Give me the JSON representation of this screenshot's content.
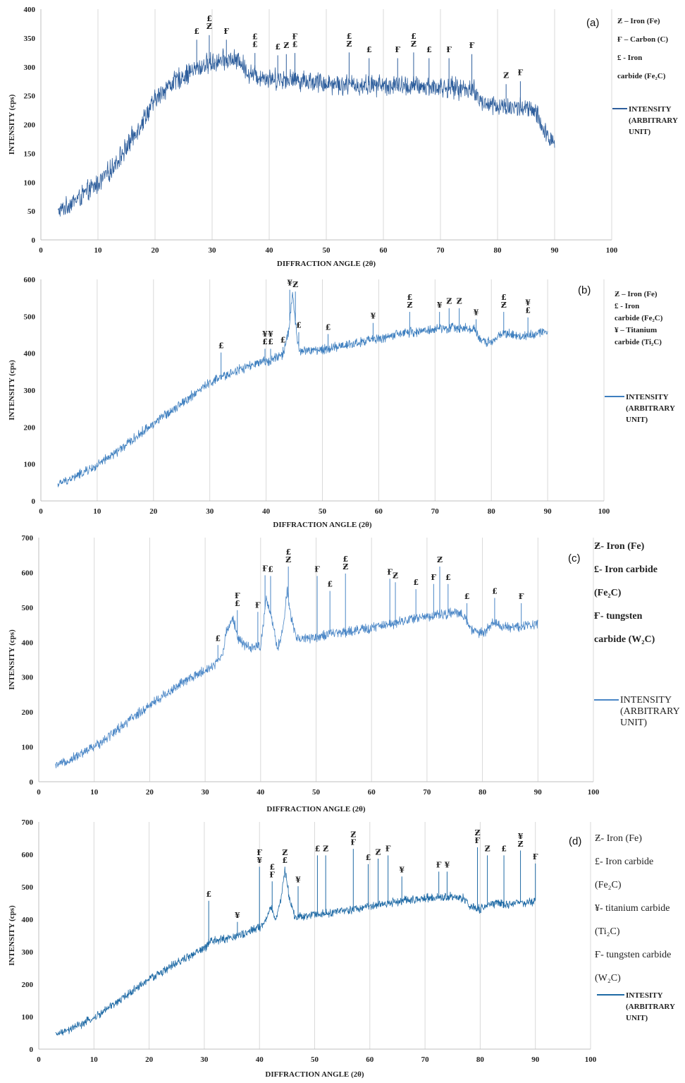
{
  "chart_data": [
    {
      "type": "line",
      "panel_label": "(a)",
      "xlabel": "DIFFRACTION ANGLE (2θ)",
      "ylabel": "INTENSITY (cps)",
      "xlim": [
        0,
        100
      ],
      "ylim": [
        0,
        400
      ],
      "xticks": [
        0,
        10,
        20,
        30,
        40,
        50,
        60,
        70,
        80,
        90,
        100
      ],
      "yticks": [
        0,
        50,
        100,
        150,
        200,
        250,
        300,
        350,
        400
      ],
      "grid": "vertical",
      "series": [
        {
          "name": "INTENSITY (ARBITRARY UNIT)",
          "color": "#2e5e9c",
          "x": [
            3,
            5,
            8,
            10,
            12,
            15,
            18,
            20,
            22,
            25,
            28,
            30,
            33,
            35,
            36,
            38,
            40,
            45,
            50,
            55,
            60,
            65,
            70,
            75,
            76,
            77,
            80,
            85,
            87,
            88,
            90
          ],
          "y": [
            48,
            62,
            82,
            98,
            118,
            160,
            210,
            242,
            265,
            285,
            300,
            308,
            312,
            310,
            292,
            285,
            280,
            278,
            272,
            268,
            268,
            266,
            264,
            262,
            260,
            238,
            232,
            228,
            218,
            185,
            172
          ],
          "noise": 22
        }
      ],
      "annotations": [
        {
          "x": 27.3,
          "y": 355,
          "labels": [
            "£"
          ]
        },
        {
          "x": 29.5,
          "y": 363,
          "labels": [
            "£",
            "Ƶ"
          ]
        },
        {
          "x": 32.5,
          "y": 355,
          "labels": [
            "Ғ"
          ]
        },
        {
          "x": 37.5,
          "y": 332,
          "labels": [
            "£",
            "£"
          ]
        },
        {
          "x": 41.5,
          "y": 328,
          "labels": [
            "£"
          ]
        },
        {
          "x": 43.0,
          "y": 330,
          "labels": [
            "Ƶ"
          ]
        },
        {
          "x": 44.5,
          "y": 332,
          "labels": [
            "Ғ",
            "£"
          ]
        },
        {
          "x": 54.0,
          "y": 333,
          "labels": [
            "£",
            "Ƶ"
          ]
        },
        {
          "x": 57.5,
          "y": 323,
          "labels": [
            "£"
          ]
        },
        {
          "x": 62.5,
          "y": 323,
          "labels": [
            "Ғ"
          ]
        },
        {
          "x": 65.3,
          "y": 333,
          "labels": [
            "£",
            "Ƶ"
          ]
        },
        {
          "x": 68.0,
          "y": 323,
          "labels": [
            "£"
          ]
        },
        {
          "x": 71.5,
          "y": 323,
          "labels": [
            "Ғ"
          ]
        },
        {
          "x": 75.5,
          "y": 330,
          "labels": [
            "Ғ"
          ]
        },
        {
          "x": 81.5,
          "y": 278,
          "labels": [
            "Ƶ"
          ]
        },
        {
          "x": 84.0,
          "y": 283,
          "labels": [
            "Ғ"
          ]
        }
      ],
      "legend_keys": [
        "Ƶ – Iron (Fe)",
        "Ғ – Carbon (C)",
        "£ - Iron",
        "carbide (Fe₂C)"
      ],
      "legend_series": [
        "INTENSITY",
        "(ARBITRARY",
        "UNIT)"
      ]
    },
    {
      "type": "line",
      "panel_label": "(b)",
      "xlabel": "DIFFRACTION ANGLE (2θ)",
      "ylabel": "INTENSITY (cps)",
      "xlim": [
        0,
        100
      ],
      "ylim": [
        0,
        600
      ],
      "xticks": [
        0,
        10,
        20,
        30,
        40,
        50,
        60,
        70,
        80,
        90,
        100
      ],
      "yticks": [
        0,
        100,
        200,
        300,
        400,
        500,
        600
      ],
      "grid": "vertical",
      "series": [
        {
          "name": "INTENSITY (ARBITRARY UNIT)",
          "color": "#3e7fbf",
          "x": [
            3,
            5,
            10,
            15,
            20,
            25,
            30,
            35,
            40,
            43,
            44,
            44.7,
            45.5,
            46,
            50,
            55,
            60,
            65,
            70,
            75,
            77,
            78,
            80,
            82,
            85,
            90
          ],
          "y": [
            45,
            58,
            95,
            150,
            210,
            265,
            320,
            355,
            378,
            395,
            460,
            560,
            440,
            405,
            410,
            425,
            440,
            455,
            465,
            470,
            465,
            435,
            430,
            455,
            445,
            460
          ],
          "noise": 16
        }
      ],
      "annotations": [
        {
          "x": 32.0,
          "y": 410,
          "labels": [
            "£"
          ]
        },
        {
          "x": 39.8,
          "y": 420,
          "labels": [
            "¥",
            "£"
          ]
        },
        {
          "x": 40.8,
          "y": 420,
          "labels": [
            "¥",
            "£"
          ]
        },
        {
          "x": 43.0,
          "y": 425,
          "labels": [
            "£"
          ]
        },
        {
          "x": 44.2,
          "y": 580,
          "labels": [
            "¥"
          ]
        },
        {
          "x": 45.2,
          "y": 575,
          "labels": [
            "Ƶ"
          ]
        },
        {
          "x": 45.8,
          "y": 465,
          "labels": [
            "£"
          ]
        },
        {
          "x": 51.0,
          "y": 460,
          "labels": [
            "£"
          ]
        },
        {
          "x": 59.0,
          "y": 490,
          "labels": [
            "¥"
          ]
        },
        {
          "x": 65.5,
          "y": 520,
          "labels": [
            "£",
            "Ƶ"
          ]
        },
        {
          "x": 70.8,
          "y": 520,
          "labels": [
            "¥"
          ]
        },
        {
          "x": 72.5,
          "y": 530,
          "labels": [
            "Ƶ"
          ]
        },
        {
          "x": 74.3,
          "y": 530,
          "labels": [
            "Ƶ"
          ]
        },
        {
          "x": 77.3,
          "y": 500,
          "labels": [
            "¥"
          ]
        },
        {
          "x": 82.2,
          "y": 520,
          "labels": [
            "£",
            "Ƶ"
          ]
        },
        {
          "x": 86.5,
          "y": 505,
          "labels": [
            "¥",
            "£"
          ]
        }
      ],
      "legend_keys": [
        "Ƶ – Iron (Fe)",
        "£ - Iron",
        "carbide (Fe₂C)",
        "¥ – Titanium",
        "carbide (Ti₂C)"
      ],
      "legend_series": [
        "INTENSITY",
        "(ARBITRARY",
        "UNIT)"
      ]
    },
    {
      "type": "line",
      "panel_label": "(c)",
      "xlabel": "DIFFRACTION ANGLE (2θ)",
      "ylabel": "INTENSITY (cps)",
      "xlim": [
        0,
        100
      ],
      "ylim": [
        0,
        700
      ],
      "xticks": [
        0,
        10,
        20,
        30,
        40,
        50,
        60,
        70,
        80,
        90,
        100
      ],
      "yticks": [
        0,
        100,
        200,
        300,
        400,
        500,
        600,
        700
      ],
      "grid": "vertical",
      "series": [
        {
          "name": "INTENSITY (ARBITRARY UNIT)",
          "color": "#4a86c6",
          "x": [
            3,
            5,
            10,
            15,
            20,
            25,
            30,
            32,
            33,
            34,
            35,
            36,
            38,
            40,
            41,
            42,
            43,
            44,
            44.8,
            45.5,
            46.5,
            50,
            55,
            60,
            65,
            70,
            75,
            77,
            78,
            80,
            82,
            85,
            90
          ],
          "y": [
            45,
            58,
            100,
            160,
            220,
            275,
            320,
            340,
            360,
            440,
            470,
            410,
            380,
            390,
            520,
            470,
            380,
            430,
            550,
            470,
            410,
            415,
            430,
            440,
            460,
            475,
            485,
            470,
            435,
            425,
            455,
            440,
            455
          ],
          "noise": 18
        }
      ],
      "annotations": [
        {
          "x": 32.3,
          "y": 400,
          "labels": [
            "£"
          ]
        },
        {
          "x": 35.8,
          "y": 500,
          "labels": [
            "Ғ",
            "£"
          ]
        },
        {
          "x": 39.5,
          "y": 495,
          "labels": [
            "Ғ"
          ]
        },
        {
          "x": 40.8,
          "y": 600,
          "labels": [
            "Ғ"
          ]
        },
        {
          "x": 41.8,
          "y": 598,
          "labels": [
            "£"
          ]
        },
        {
          "x": 45.0,
          "y": 625,
          "labels": [
            "£",
            "Ƶ"
          ]
        },
        {
          "x": 50.2,
          "y": 598,
          "labels": [
            "Ғ"
          ]
        },
        {
          "x": 52.5,
          "y": 555,
          "labels": [
            "£"
          ]
        },
        {
          "x": 55.3,
          "y": 605,
          "labels": [
            "£",
            "Ƶ"
          ]
        },
        {
          "x": 63.3,
          "y": 590,
          "labels": [
            "Ғ"
          ]
        },
        {
          "x": 64.3,
          "y": 580,
          "labels": [
            "Ƶ"
          ]
        },
        {
          "x": 68.0,
          "y": 560,
          "labels": [
            "£"
          ]
        },
        {
          "x": 71.2,
          "y": 575,
          "labels": [
            "Ғ"
          ]
        },
        {
          "x": 72.3,
          "y": 625,
          "labels": [
            "Ƶ"
          ]
        },
        {
          "x": 73.8,
          "y": 575,
          "labels": [
            "£"
          ]
        },
        {
          "x": 77.2,
          "y": 520,
          "labels": [
            "£"
          ]
        },
        {
          "x": 82.2,
          "y": 535,
          "labels": [
            "£"
          ]
        },
        {
          "x": 87.0,
          "y": 520,
          "labels": [
            "Ғ"
          ]
        }
      ],
      "legend_keys": [
        "Ƶ- Iron (Fe)",
        "£- Iron carbide",
        "(Fe₂C)",
        "Ғ- tungsten",
        "carbide (W₂C)"
      ],
      "legend_series": [
        "INTENSITY",
        "(ARBITRARY",
        "UNIT)"
      ]
    },
    {
      "type": "line",
      "panel_label": "(d)",
      "xlabel": "DIFFRACTION ANGLE (2θ)",
      "ylabel": "INTENSITY (cps)",
      "xlim": [
        0,
        100
      ],
      "ylim": [
        0,
        700
      ],
      "xticks": [
        0,
        10,
        20,
        30,
        40,
        50,
        60,
        70,
        80,
        90,
        100
      ],
      "yticks": [
        0,
        100,
        200,
        300,
        400,
        500,
        600,
        700
      ],
      "grid": "vertical",
      "series": [
        {
          "name": "INTESITY (ARBITRARY UNIT)",
          "color": "#1f6aa5",
          "x": [
            3,
            5,
            10,
            15,
            20,
            25,
            30,
            31,
            35,
            38,
            40,
            41,
            42,
            43,
            44,
            44.6,
            45.5,
            46.5,
            50,
            55,
            60,
            65,
            70,
            75,
            77,
            78,
            80,
            82,
            85,
            87,
            88,
            90
          ],
          "y": [
            45,
            55,
            95,
            155,
            215,
            265,
            310,
            330,
            345,
            360,
            375,
            390,
            440,
            400,
            470,
            550,
            460,
            405,
            415,
            425,
            440,
            455,
            465,
            470,
            465,
            440,
            430,
            450,
            445,
            455,
            445,
            460
          ],
          "noise": 16
        }
      ],
      "annotations": [
        {
          "x": 30.8,
          "y": 465,
          "labels": [
            "£"
          ]
        },
        {
          "x": 36.0,
          "y": 400,
          "labels": [
            "¥"
          ]
        },
        {
          "x": 40.0,
          "y": 570,
          "labels": [
            "Ғ",
            "¥"
          ]
        },
        {
          "x": 42.3,
          "y": 525,
          "labels": [
            "£",
            "Ғ"
          ]
        },
        {
          "x": 44.6,
          "y": 570,
          "labels": [
            "Ƶ",
            "£"
          ]
        },
        {
          "x": 47.0,
          "y": 510,
          "labels": [
            "¥"
          ]
        },
        {
          "x": 50.5,
          "y": 605,
          "labels": [
            "£"
          ]
        },
        {
          "x": 52.0,
          "y": 605,
          "labels": [
            "Ƶ"
          ]
        },
        {
          "x": 57.0,
          "y": 625,
          "labels": [
            "Ƶ",
            "Ғ"
          ]
        },
        {
          "x": 59.7,
          "y": 578,
          "labels": [
            "£"
          ]
        },
        {
          "x": 61.5,
          "y": 595,
          "labels": [
            "Ƶ"
          ]
        },
        {
          "x": 63.3,
          "y": 605,
          "labels": [
            "Ғ"
          ]
        },
        {
          "x": 65.8,
          "y": 540,
          "labels": [
            "¥"
          ]
        },
        {
          "x": 72.5,
          "y": 555,
          "labels": [
            "Ғ"
          ]
        },
        {
          "x": 74.0,
          "y": 555,
          "labels": [
            "¥"
          ]
        },
        {
          "x": 79.5,
          "y": 630,
          "labels": [
            "Ƶ",
            "Ғ"
          ]
        },
        {
          "x": 81.3,
          "y": 605,
          "labels": [
            "Ƶ"
          ]
        },
        {
          "x": 84.3,
          "y": 605,
          "labels": [
            "£"
          ]
        },
        {
          "x": 87.3,
          "y": 620,
          "labels": [
            "¥",
            "Ƶ"
          ]
        },
        {
          "x": 90.0,
          "y": 580,
          "labels": [
            "Ғ"
          ]
        }
      ],
      "legend_keys": [
        "Ƶ- Iron (Fe)",
        "£- Iron carbide",
        "(Fe₂C)",
        "¥- titanium carbide",
        "(Ti₂C)",
        "Ғ- tungsten carbide",
        "(W₂C)"
      ],
      "legend_series": [
        "INTESITY",
        "(ARBITRARY",
        "UNIT)"
      ]
    }
  ]
}
